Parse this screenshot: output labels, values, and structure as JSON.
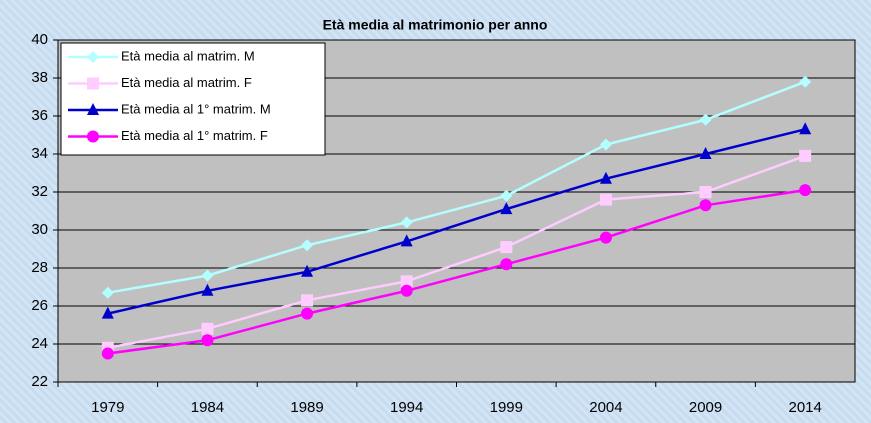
{
  "chart_data": {
    "type": "line",
    "title": "Età media al matrimonio per anno",
    "categories": [
      "1979",
      "1984",
      "1989",
      "1994",
      "1999",
      "2004",
      "2009",
      "2014"
    ],
    "series": [
      {
        "name": "Età media al matrim. M",
        "color": "#b3ffff",
        "marker": "diamond",
        "values": [
          26.7,
          27.6,
          29.2,
          30.4,
          31.8,
          34.5,
          35.8,
          37.8
        ]
      },
      {
        "name": "Età media al matrim. F",
        "color": "#ffccff",
        "marker": "square",
        "values": [
          23.8,
          24.8,
          26.3,
          27.3,
          29.1,
          31.6,
          32.0,
          33.9
        ]
      },
      {
        "name": "Età media al 1° matrim. M",
        "color": "#0000cc",
        "marker": "triangle",
        "values": [
          25.6,
          26.8,
          27.8,
          29.4,
          31.1,
          32.7,
          34.0,
          35.3
        ]
      },
      {
        "name": "Età media al 1° matrim. F",
        "color": "#ff00ff",
        "marker": "circle",
        "values": [
          23.5,
          24.2,
          25.6,
          26.8,
          28.2,
          29.6,
          31.3,
          32.1
        ]
      }
    ],
    "ylim": [
      22,
      40
    ],
    "yticks": [
      22,
      24,
      26,
      28,
      30,
      32,
      34,
      36,
      38,
      40
    ],
    "grid": true,
    "legend": "top-left"
  }
}
